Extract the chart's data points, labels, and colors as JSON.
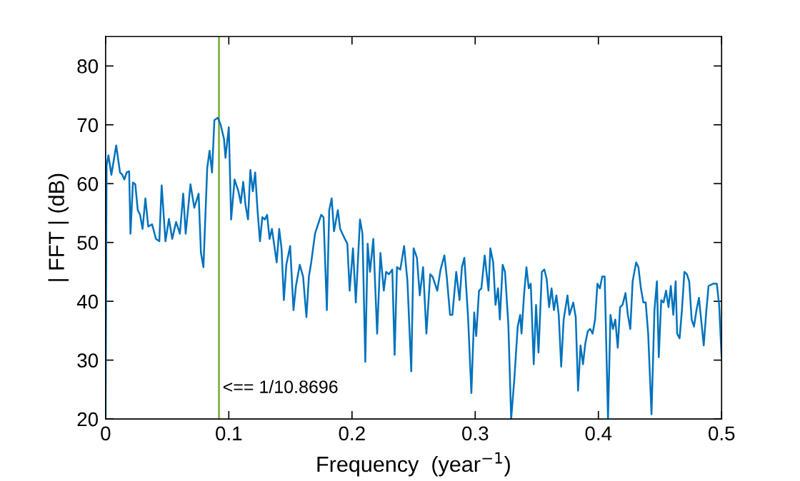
{
  "chart_data": {
    "type": "line",
    "xlabel": "Frequency  (year$^{−1}$)",
    "ylabel": "| FFT | (dB)",
    "xlim": [
      0,
      0.5
    ],
    "xticks": [
      0,
      0.1,
      0.2,
      0.3,
      0.4,
      0.5
    ],
    "ylim": [
      20,
      85
    ],
    "yticks": [
      20,
      30,
      40,
      50,
      60,
      70,
      80
    ],
    "grid": false,
    "marker": "none",
    "line_style": "solid",
    "ref_lines": [
      {
        "axis": "x",
        "value": 0.092,
        "color": "#77ac30"
      }
    ],
    "annotations": [
      "<== 1/10.8696"
    ],
    "series": [
      {
        "color": "#0072bd",
        "x": [
          0,
          0.0008,
          0.0023,
          0.0047,
          0.0086,
          0.0117,
          0.0136,
          0.0152,
          0.0171,
          0.0191,
          0.0202,
          0.0222,
          0.0241,
          0.0261,
          0.028,
          0.03,
          0.0323,
          0.0346,
          0.0377,
          0.0409,
          0.0436,
          0.0455,
          0.0486,
          0.0514,
          0.0541,
          0.0572,
          0.0603,
          0.063,
          0.065,
          0.0689,
          0.072,
          0.0755,
          0.0774,
          0.0794,
          0.0825,
          0.0844,
          0.0864,
          0.0883,
          0.0911,
          0.0934,
          0.0961,
          0.0973,
          0.1,
          0.1019,
          0.1047,
          0.1078,
          0.1097,
          0.1117,
          0.1136,
          0.1156,
          0.1175,
          0.1195,
          0.1214,
          0.1233,
          0.1253,
          0.1272,
          0.1292,
          0.1311,
          0.1331,
          0.135,
          0.1389,
          0.1409,
          0.1428,
          0.1447,
          0.1467,
          0.1498,
          0.1525,
          0.1545,
          0.1576,
          0.1603,
          0.163,
          0.165,
          0.1669,
          0.17,
          0.1712,
          0.175,
          0.1769,
          0.1796,
          0.1815,
          0.1835,
          0.1854,
          0.1885,
          0.1904,
          0.1942,
          0.1962,
          0.1981,
          0.2008,
          0.2031,
          0.2065,
          0.2085,
          0.2108,
          0.2127,
          0.2146,
          0.2173,
          0.2204,
          0.2231,
          0.2258,
          0.2277,
          0.23,
          0.2327,
          0.2346,
          0.2365,
          0.2392,
          0.2423,
          0.245,
          0.2481,
          0.25,
          0.2527,
          0.255,
          0.2577,
          0.2604,
          0.2635,
          0.2654,
          0.2692,
          0.2719,
          0.275,
          0.2769,
          0.2796,
          0.2815,
          0.2846,
          0.2873,
          0.2892,
          0.2912,
          0.2942,
          0.2969,
          0.2992,
          0.3008,
          0.3031,
          0.305,
          0.3077,
          0.3108,
          0.3123,
          0.3146,
          0.3165,
          0.3185,
          0.32,
          0.3223,
          0.3242,
          0.3269,
          0.3292,
          0.3318,
          0.3345,
          0.3365,
          0.3376,
          0.3396,
          0.3416,
          0.3435,
          0.3451,
          0.3475,
          0.3494,
          0.3514,
          0.3541,
          0.3561,
          0.358,
          0.36,
          0.362,
          0.3639,
          0.3659,
          0.3678,
          0.3698,
          0.3718,
          0.3749,
          0.3765,
          0.3796,
          0.3816,
          0.3835,
          0.3855,
          0.3875,
          0.3894,
          0.3914,
          0.3933,
          0.3953,
          0.3973,
          0.3992,
          0.4012,
          0.4031,
          0.4051,
          0.4078,
          0.4098,
          0.4118,
          0.4137,
          0.4157,
          0.4176,
          0.4196,
          0.422,
          0.4239,
          0.4259,
          0.4278,
          0.4306,
          0.4325,
          0.4345,
          0.4365,
          0.4384,
          0.4404,
          0.4431,
          0.4455,
          0.4475,
          0.449,
          0.451,
          0.4529,
          0.4549,
          0.4569,
          0.4588,
          0.4608,
          0.4627,
          0.4639,
          0.4659,
          0.4678,
          0.4698,
          0.4718,
          0.4737,
          0.4757,
          0.4776,
          0.4796,
          0.4816,
          0.4855,
          0.4875,
          0.4894,
          0.4933,
          0.4961,
          0.498,
          0.5
        ],
        "values": [
          20,
          63.1,
          64.8,
          61.5,
          66.5,
          61.9,
          61.5,
          60.7,
          61.9,
          62.1,
          51.5,
          60.2,
          59.9,
          55.5,
          54.7,
          52.3,
          57.5,
          52.7,
          53.1,
          50.6,
          50.2,
          59.7,
          50.2,
          54.0,
          50.6,
          53.5,
          51.5,
          58.3,
          51.5,
          59.9,
          55.9,
          58.3,
          48.2,
          45.8,
          62.7,
          65.6,
          61.9,
          70.8,
          71.2,
          70.0,
          67.6,
          64.4,
          69.6,
          53.9,
          60.7,
          58.7,
          56.7,
          60.3,
          56.3,
          53.9,
          62.3,
          58.7,
          61.9,
          55.5,
          50.2,
          54.3,
          53.9,
          54.7,
          50.6,
          52.3,
          46.6,
          52.3,
          49.0,
          40.2,
          46.2,
          49.4,
          38.5,
          42.6,
          46.2,
          44.2,
          37.3,
          44.2,
          46.6,
          51.5,
          52.3,
          54.7,
          54.3,
          38.5,
          55.5,
          57.5,
          51.9,
          55.5,
          52.3,
          50.6,
          49.8,
          41.8,
          49.0,
          39.8,
          53.9,
          51.5,
          29.7,
          49.8,
          45.0,
          50.6,
          34.5,
          48.2,
          41.8,
          45.0,
          44.6,
          45.4,
          30.9,
          45.8,
          45.4,
          49.4,
          43.4,
          28.1,
          49.0,
          47.4,
          41.0,
          45.8,
          34.5,
          44.6,
          44.2,
          41.8,
          45.4,
          47.8,
          44.2,
          37.7,
          37.7,
          45.0,
          40.2,
          45.8,
          47.4,
          37.3,
          24.4,
          38.1,
          34.1,
          41.8,
          42.2,
          47.8,
          41.8,
          49.0,
          46.6,
          39.4,
          42.2,
          36.9,
          46.2,
          45.0,
          36.1,
          20,
          26.9,
          35.7,
          37.7,
          34.5,
          41.0,
          45.8,
          42.2,
          43.0,
          29.3,
          39.4,
          31.3,
          45.0,
          45.4,
          43.8,
          39.0,
          42.2,
          38.5,
          41.0,
          37.7,
          28.9,
          36.9,
          41.0,
          37.7,
          39.8,
          37.3,
          24.8,
          32.5,
          29.3,
          32.9,
          34.9,
          35.3,
          34.5,
          36.9,
          43.0,
          42.2,
          44.2,
          44.2,
          20,
          37.7,
          35.3,
          36.9,
          32.1,
          39.0,
          39.4,
          41.4,
          37.7,
          35.3,
          43.4,
          46.6,
          45.8,
          42.2,
          39.8,
          39.8,
          34.5,
          20.8,
          38.5,
          43.4,
          30.5,
          40.2,
          39.8,
          41.8,
          39.0,
          42.6,
          37.7,
          43.4,
          34.5,
          33.7,
          38.5,
          45.0,
          44.6,
          43.4,
          36.9,
          35.7,
          38.5,
          40.6,
          32.5,
          38.1,
          42.6,
          43.0,
          43.0,
          39.4,
          30.5
        ]
      }
    ]
  }
}
